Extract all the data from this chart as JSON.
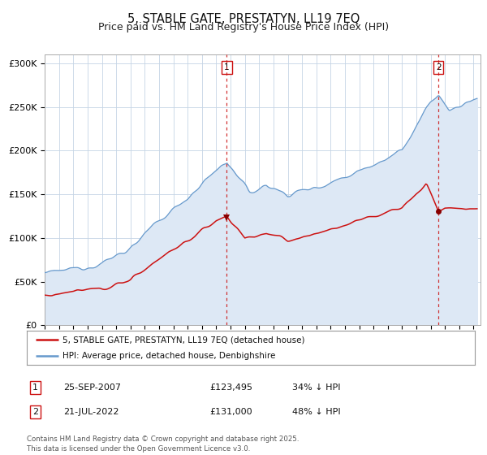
{
  "title": "5, STABLE GATE, PRESTATYN, LL19 7EQ",
  "subtitle": "Price paid vs. HM Land Registry's House Price Index (HPI)",
  "ylabel_ticks": [
    "£0",
    "£50K",
    "£100K",
    "£150K",
    "£200K",
    "£250K",
    "£300K"
  ],
  "ytick_vals": [
    0,
    50000,
    100000,
    150000,
    200000,
    250000,
    300000
  ],
  "ylim": [
    0,
    310000
  ],
  "xlim_start": 1995.0,
  "xlim_end": 2025.5,
  "hpi_color": "#6699cc",
  "hpi_fill_color": "#dde8f5",
  "property_color": "#cc1111",
  "vline1_color": "#cc1111",
  "vline2_color": "#cc1111",
  "marker_color": "#880000",
  "event1_x": 2007.73,
  "event1_y": 123495,
  "event2_x": 2022.55,
  "event2_y": 131000,
  "legend_property": "5, STABLE GATE, PRESTATYN, LL19 7EQ (detached house)",
  "legend_hpi": "HPI: Average price, detached house, Denbighshire",
  "table_row1": [
    "1",
    "25-SEP-2007",
    "£123,495",
    "34% ↓ HPI"
  ],
  "table_row2": [
    "2",
    "21-JUL-2022",
    "£131,000",
    "48% ↓ HPI"
  ],
  "footnote": "Contains HM Land Registry data © Crown copyright and database right 2025.\nThis data is licensed under the Open Government Licence v3.0.",
  "background_color": "#ffffff",
  "grid_color": "#c5d5e5",
  "title_fontsize": 10.5,
  "subtitle_fontsize": 9.0
}
